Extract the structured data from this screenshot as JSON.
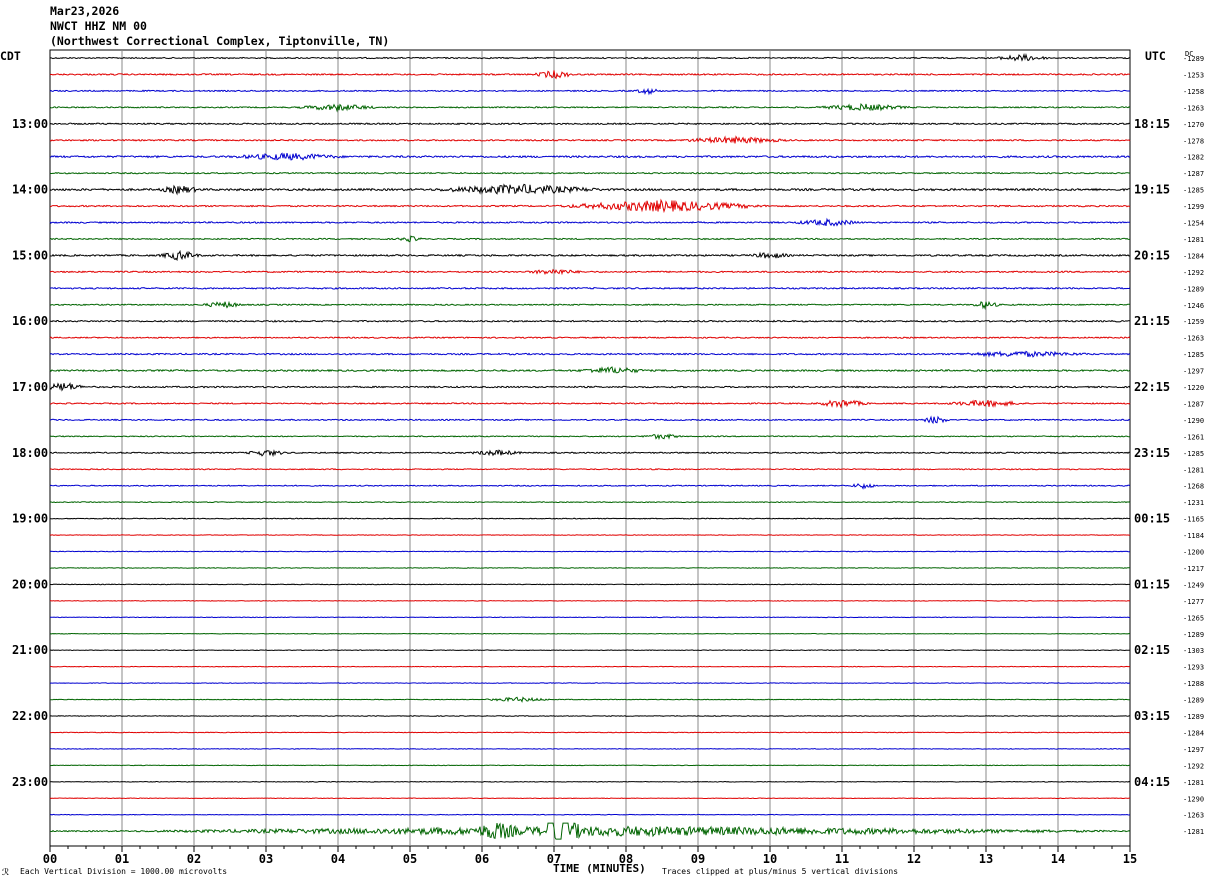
{
  "header": {
    "date": "Mar23,2026",
    "station": "NWCT HHZ NM 00",
    "location": "(Northwest Correctional Complex, Tiptonville, TN)"
  },
  "left_tz_label": "CDT",
  "right_tz_label": "UTC",
  "dc_header": "DC",
  "footer": {
    "scale_note": "Each Vertical Division = 1000.00 microvolts",
    "clip_note": "Traces clipped at plus/minus 5 vertical divisions",
    "corner_mark": "ℛ"
  },
  "chart_data": {
    "type": "line",
    "title": "NWCT HHZ NM 00",
    "xlabel": "TIME (MINUTES)",
    "x_ticks": [
      "00",
      "01",
      "02",
      "03",
      "04",
      "05",
      "06",
      "07",
      "08",
      "09",
      "10",
      "11",
      "12",
      "13",
      "14",
      "15"
    ],
    "x_range": [
      0,
      15
    ],
    "trace_colors": [
      "#000000",
      "#e00000",
      "#0000d0",
      "#006400"
    ],
    "left_time_labels": [
      "13:00",
      "14:00",
      "15:00",
      "16:00",
      "17:00",
      "18:00",
      "19:00",
      "20:00",
      "21:00",
      "22:00",
      "23:00"
    ],
    "right_time_labels": [
      "18:15",
      "19:15",
      "20:15",
      "21:15",
      "22:15",
      "23:15",
      "00:15",
      "01:15",
      "02:15",
      "03:15",
      "04:15"
    ],
    "dc_offsets": [
      "-1289",
      "-1253",
      "-1258",
      "-1263",
      "-1270",
      "-1278",
      "-1282",
      "-1287",
      "-1285",
      "-1299",
      "-1254",
      "-1281",
      "-1284",
      "-1292",
      "-1289",
      "-1246",
      "-1259",
      "-1263",
      "-1285",
      "-1297",
      "-1220",
      "-1287",
      "-1290",
      "-1261",
      "-1285",
      "-1281",
      "-1268",
      "-1231",
      "-1165",
      "-1184",
      "-1200",
      "-1217",
      "-1249",
      "-1277",
      "-1265",
      "-1289",
      "-1303",
      "-1293",
      "-1288",
      "-1289",
      "-1289",
      "-1284",
      "-1297",
      "-1292",
      "-1281",
      "-1290",
      "-1263",
      "-1281"
    ],
    "trace_activity": [
      {
        "row": 0,
        "bursts": [
          [
            13.5,
            0.4,
            1.0
          ]
        ],
        "base": 0.6
      },
      {
        "row": 1,
        "bursts": [
          [
            7.0,
            0.3,
            1.2
          ]
        ],
        "base": 0.7
      },
      {
        "row": 2,
        "bursts": [
          [
            8.3,
            0.2,
            0.9
          ]
        ],
        "base": 0.6
      },
      {
        "row": 3,
        "bursts": [
          [
            4.0,
            0.6,
            1.0
          ],
          [
            11.3,
            0.7,
            1.0
          ]
        ],
        "base": 0.6
      },
      {
        "row": 4,
        "bursts": [],
        "base": 0.7
      },
      {
        "row": 5,
        "bursts": [
          [
            9.5,
            0.8,
            1.0
          ]
        ],
        "base": 0.7
      },
      {
        "row": 6,
        "bursts": [
          [
            3.3,
            0.8,
            1.0
          ]
        ],
        "base": 0.9
      },
      {
        "row": 7,
        "bursts": [],
        "base": 0.6
      },
      {
        "row": 8,
        "bursts": [
          [
            1.8,
            0.3,
            1.2
          ],
          [
            6.5,
            1.2,
            1.5
          ]
        ],
        "base": 1.0
      },
      {
        "row": 9,
        "bursts": [
          [
            8.5,
            1.5,
            1.8
          ]
        ],
        "base": 0.7
      },
      {
        "row": 10,
        "bursts": [
          [
            10.8,
            0.5,
            1.0
          ]
        ],
        "base": 0.7
      },
      {
        "row": 11,
        "bursts": [
          [
            5.0,
            0.2,
            0.8
          ]
        ],
        "base": 0.6
      },
      {
        "row": 12,
        "bursts": [
          [
            1.8,
            0.3,
            1.4
          ],
          [
            10.0,
            0.3,
            0.9
          ]
        ],
        "base": 0.8
      },
      {
        "row": 13,
        "bursts": [
          [
            7.0,
            0.4,
            0.8
          ]
        ],
        "base": 0.7
      },
      {
        "row": 14,
        "bursts": [],
        "base": 0.7
      },
      {
        "row": 15,
        "bursts": [
          [
            2.4,
            0.3,
            1.0
          ],
          [
            13.0,
            0.2,
            1.2
          ]
        ],
        "base": 0.6
      },
      {
        "row": 16,
        "bursts": [],
        "base": 0.7
      },
      {
        "row": 17,
        "bursts": [],
        "base": 0.6
      },
      {
        "row": 18,
        "bursts": [
          [
            13.5,
            1.0,
            0.8
          ]
        ],
        "base": 0.7
      },
      {
        "row": 19,
        "bursts": [
          [
            7.8,
            0.5,
            1.0
          ]
        ],
        "base": 0.8
      },
      {
        "row": 20,
        "bursts": [
          [
            0.2,
            0.3,
            1.4
          ]
        ],
        "base": 0.7
      },
      {
        "row": 21,
        "bursts": [
          [
            11.0,
            0.4,
            1.2
          ],
          [
            13.0,
            0.6,
            1.0
          ]
        ],
        "base": 0.6
      },
      {
        "row": 22,
        "bursts": [
          [
            12.3,
            0.2,
            1.2
          ]
        ],
        "base": 0.6
      },
      {
        "row": 23,
        "bursts": [
          [
            8.5,
            0.3,
            0.8
          ]
        ],
        "base": 0.5
      },
      {
        "row": 24,
        "bursts": [
          [
            3.0,
            0.3,
            1.0
          ],
          [
            6.2,
            0.4,
            0.8
          ]
        ],
        "base": 0.6
      },
      {
        "row": 25,
        "bursts": [],
        "base": 0.5
      },
      {
        "row": 26,
        "bursts": [
          [
            11.3,
            0.2,
            0.9
          ]
        ],
        "base": 0.5
      },
      {
        "row": 27,
        "bursts": [],
        "base": 0.4
      },
      {
        "row": 28,
        "bursts": [],
        "base": 0.4
      },
      {
        "row": 29,
        "bursts": [],
        "base": 0.3
      },
      {
        "row": 30,
        "bursts": [],
        "base": 0.3
      },
      {
        "row": 31,
        "bursts": [],
        "base": 0.3
      },
      {
        "row": 32,
        "bursts": [],
        "base": 0.3
      },
      {
        "row": 33,
        "bursts": [],
        "base": 0.3
      },
      {
        "row": 34,
        "bursts": [],
        "base": 0.3
      },
      {
        "row": 35,
        "bursts": [],
        "base": 0.3
      },
      {
        "row": 36,
        "bursts": [],
        "base": 0.3
      },
      {
        "row": 37,
        "bursts": [],
        "base": 0.3
      },
      {
        "row": 38,
        "bursts": [],
        "base": 0.3
      },
      {
        "row": 39,
        "bursts": [
          [
            6.5,
            0.5,
            0.7
          ]
        ],
        "base": 0.3
      },
      {
        "row": 40,
        "bursts": [],
        "base": 0.3
      },
      {
        "row": 41,
        "bursts": [],
        "base": 0.3
      },
      {
        "row": 42,
        "bursts": [],
        "base": 0.3
      },
      {
        "row": 43,
        "bursts": [],
        "base": 0.3
      },
      {
        "row": 44,
        "bursts": [],
        "base": 0.3
      },
      {
        "row": 45,
        "bursts": [],
        "base": 0.3
      },
      {
        "row": 46,
        "bursts": [],
        "base": 0.3
      },
      {
        "row": 47,
        "bursts": [
          [
            6.2,
            0.3,
            2.0
          ],
          [
            7.1,
            0.3,
            3.5
          ],
          [
            8.0,
            7.0,
            1.5
          ]
        ],
        "base": 0.6
      }
    ]
  }
}
